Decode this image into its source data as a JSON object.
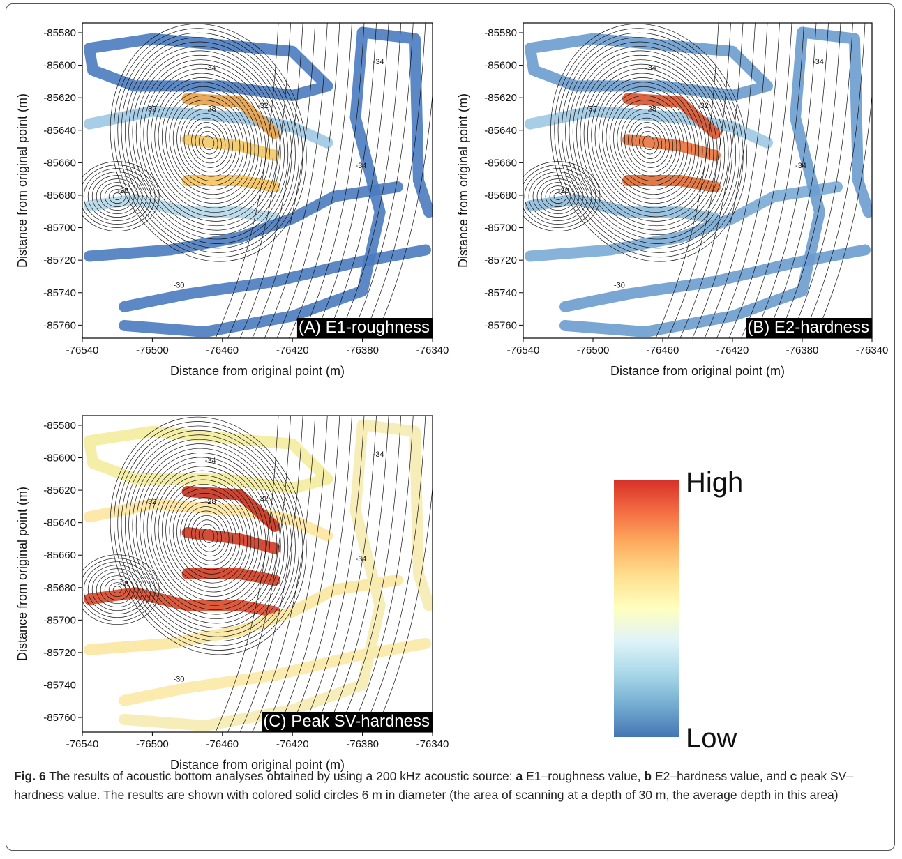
{
  "chart_data": [
    {
      "type": "map",
      "panel_label": "(A) E1-roughness",
      "xlabel": "Distance from original point (m)",
      "ylabel": "Distance from original point (m)",
      "xlim": [
        -76540,
        -76340
      ],
      "xticks": [
        -76540,
        -76500,
        -76460,
        -76420,
        -76380,
        -76340
      ],
      "ylim": [
        -85768,
        -85574
      ],
      "yticks": [
        -85580,
        -85600,
        -85620,
        -85640,
        -85660,
        -85680,
        -85700,
        -85720,
        -85740,
        -85760
      ],
      "contour_labels": [
        -34,
        -32,
        -28,
        -32,
        -28,
        -34,
        -30,
        -34
      ]
    },
    {
      "type": "map",
      "panel_label": "(B) E2-hardness",
      "xlabel": "Distance from original point (m)",
      "ylabel": "Distance from original point (m)",
      "xlim": [
        -76540,
        -76340
      ],
      "xticks": [
        -76540,
        -76500,
        -76460,
        -76420,
        -76380,
        -76340
      ],
      "ylim": [
        -85768,
        -85574
      ],
      "yticks": [
        -85580,
        -85600,
        -85620,
        -85640,
        -85660,
        -85680,
        -85700,
        -85720,
        -85740,
        -85760
      ],
      "contour_labels": [
        -34,
        -32,
        -28,
        -32,
        -28,
        -34,
        -30,
        -34
      ]
    },
    {
      "type": "map",
      "panel_label": "(C) Peak SV-hardness",
      "xlabel": "Distance from original point (m)",
      "ylabel": "Distance from original point (m)",
      "xlim": [
        -76540,
        -76340
      ],
      "xticks": [
        -76540,
        -76500,
        -76460,
        -76420,
        -76380,
        -76340
      ],
      "ylim": [
        -85769,
        -85574
      ],
      "yticks": [
        -85580,
        -85600,
        -85620,
        -85640,
        -85660,
        -85680,
        -85700,
        -85720,
        -85740,
        -85760
      ],
      "contour_labels": [
        -34,
        -32,
        -28,
        -32,
        -28,
        -34,
        -30,
        -34
      ]
    }
  ],
  "colorbar": {
    "high": "High",
    "low": "Low",
    "colors": [
      "#d73027",
      "#f46d43",
      "#fdae61",
      "#fee090",
      "#ffffbf",
      "#e0f3f8",
      "#abd9e9",
      "#74add1",
      "#4575b4"
    ]
  },
  "caption": [
    {
      "text": "Fig. 6",
      "bold": true
    },
    {
      "text": " The results of acoustic bottom analyses obtained by using a 200 kHz acoustic source: ",
      "bold": false
    },
    {
      "text": "a",
      "bold": true
    },
    {
      "text": " E1–roughness value, ",
      "bold": false
    },
    {
      "text": "b",
      "bold": true
    },
    {
      "text": " E2–hardness value, and ",
      "bold": false
    },
    {
      "text": "c",
      "bold": true
    },
    {
      "text": " peak SV–hardness value. The results are shown with colored solid circles 6 m in diameter (the area of scanning at a depth of 30 m, the average depth in this area)",
      "bold": false
    }
  ]
}
